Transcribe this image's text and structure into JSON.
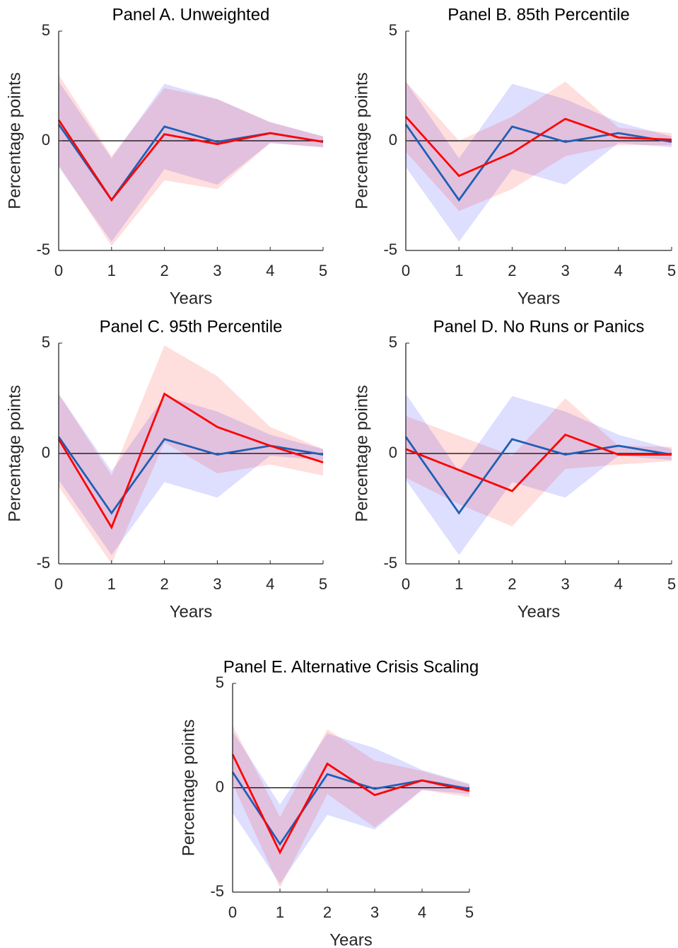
{
  "chart_data": [
    {
      "type": "line",
      "title": "Panel A. Unweighted",
      "xlabel": "Years",
      "ylabel": "Percentage points",
      "x": [
        0,
        1,
        2,
        3,
        4,
        5
      ],
      "xlim": [
        0,
        5
      ],
      "xticks": [
        0,
        1,
        2,
        3,
        4,
        5
      ],
      "ylim": [
        -5,
        5
      ],
      "yticks": [
        -5,
        0,
        5
      ],
      "reference_line": 0,
      "series": [
        {
          "color": "#1f5fb5",
          "band_color": "#0000ff",
          "values": [
            0.75,
            -2.7,
            0.65,
            -0.05,
            0.35,
            -0.05
          ],
          "lower": [
            -1.2,
            -4.6,
            -1.3,
            -2.0,
            -0.1,
            -0.3
          ],
          "upper": [
            2.7,
            -0.8,
            2.6,
            1.9,
            0.85,
            0.2
          ]
        },
        {
          "color": "#ff0000",
          "band_color": "#ff0000",
          "values": [
            0.95,
            -2.7,
            0.3,
            -0.15,
            0.35,
            -0.05
          ],
          "lower": [
            -1.1,
            -4.8,
            -1.8,
            -2.2,
            -0.1,
            -0.3
          ],
          "upper": [
            3.0,
            -0.7,
            2.4,
            1.9,
            0.85,
            0.2
          ]
        }
      ]
    },
    {
      "type": "line",
      "title": "Panel B. 85th Percentile",
      "xlabel": "Years",
      "ylabel": "Percentage points",
      "x": [
        0,
        1,
        2,
        3,
        4,
        5
      ],
      "xlim": [
        0,
        5
      ],
      "xticks": [
        0,
        1,
        2,
        3,
        4,
        5
      ],
      "ylim": [
        -5,
        5
      ],
      "yticks": [
        -5,
        0,
        5
      ],
      "reference_line": 0,
      "series": [
        {
          "color": "#1f5fb5",
          "band_color": "#0000ff",
          "values": [
            0.75,
            -2.7,
            0.65,
            -0.05,
            0.35,
            -0.05
          ],
          "lower": [
            -1.2,
            -4.6,
            -1.3,
            -2.0,
            -0.1,
            -0.3
          ],
          "upper": [
            2.7,
            -0.8,
            2.6,
            1.9,
            0.85,
            0.2
          ]
        },
        {
          "color": "#ff0000",
          "band_color": "#ff0000",
          "values": [
            1.1,
            -1.6,
            -0.55,
            1.0,
            0.15,
            0.05
          ],
          "lower": [
            -0.5,
            -3.2,
            -2.2,
            -0.7,
            -0.2,
            -0.2
          ],
          "upper": [
            2.7,
            0.0,
            1.1,
            2.7,
            0.6,
            0.35
          ]
        }
      ]
    },
    {
      "type": "line",
      "title": "Panel C. 95th Percentile",
      "xlabel": "Years",
      "ylabel": "Percentage points",
      "x": [
        0,
        1,
        2,
        3,
        4,
        5
      ],
      "xlim": [
        0,
        5
      ],
      "xticks": [
        0,
        1,
        2,
        3,
        4,
        5
      ],
      "ylim": [
        -5,
        5
      ],
      "yticks": [
        -5,
        0,
        5
      ],
      "reference_line": 0,
      "series": [
        {
          "color": "#1f5fb5",
          "band_color": "#0000ff",
          "values": [
            0.75,
            -2.7,
            0.65,
            -0.05,
            0.35,
            -0.05
          ],
          "lower": [
            -1.2,
            -4.6,
            -1.3,
            -2.0,
            -0.1,
            -0.3
          ],
          "upper": [
            2.7,
            -0.8,
            2.6,
            1.9,
            0.85,
            0.2
          ]
        },
        {
          "color": "#ff0000",
          "band_color": "#ff0000",
          "values": [
            0.65,
            -3.35,
            2.7,
            1.2,
            0.35,
            -0.4
          ],
          "lower": [
            -1.5,
            -5.0,
            0.5,
            -0.9,
            -0.5,
            -1.0
          ],
          "upper": [
            2.7,
            -1.0,
            4.9,
            3.5,
            1.2,
            0.2
          ]
        }
      ]
    },
    {
      "type": "line",
      "title": "Panel D. No Runs or Panics",
      "xlabel": "Years",
      "ylabel": "Percentage points",
      "x": [
        0,
        1,
        2,
        3,
        4,
        5
      ],
      "xlim": [
        0,
        5
      ],
      "xticks": [
        0,
        1,
        2,
        3,
        4,
        5
      ],
      "ylim": [
        -5,
        5
      ],
      "yticks": [
        -5,
        0,
        5
      ],
      "reference_line": 0,
      "series": [
        {
          "color": "#1f5fb5",
          "band_color": "#0000ff",
          "values": [
            0.75,
            -2.7,
            0.65,
            -0.05,
            0.35,
            -0.05
          ],
          "lower": [
            -1.2,
            -4.6,
            -1.3,
            -2.0,
            -0.1,
            -0.3
          ],
          "upper": [
            2.7,
            -0.8,
            2.6,
            1.9,
            0.85,
            0.2
          ]
        },
        {
          "color": "#ff0000",
          "band_color": "#ff0000",
          "values": [
            0.2,
            -0.75,
            -1.7,
            0.85,
            -0.05,
            -0.05
          ],
          "lower": [
            -1.1,
            -2.3,
            -3.3,
            -0.7,
            -0.5,
            -0.35
          ],
          "upper": [
            1.7,
            0.8,
            -0.1,
            2.5,
            0.35,
            0.3
          ]
        }
      ]
    },
    {
      "type": "line",
      "title": "Panel E. Alternative Crisis Scaling",
      "xlabel": "Years",
      "ylabel": "Percentage points",
      "x": [
        0,
        1,
        2,
        3,
        4,
        5
      ],
      "xlim": [
        0,
        5
      ],
      "xticks": [
        0,
        1,
        2,
        3,
        4,
        5
      ],
      "ylim": [
        -5,
        5
      ],
      "yticks": [
        -5,
        0,
        5
      ],
      "reference_line": 0,
      "series": [
        {
          "color": "#1f5fb5",
          "band_color": "#0000ff",
          "values": [
            0.75,
            -2.7,
            0.65,
            -0.05,
            0.35,
            -0.05
          ],
          "lower": [
            -1.2,
            -4.6,
            -1.3,
            -2.0,
            -0.1,
            -0.3
          ],
          "upper": [
            2.7,
            -0.8,
            2.6,
            1.9,
            0.85,
            0.2
          ]
        },
        {
          "color": "#ff0000",
          "band_color": "#ff0000",
          "values": [
            1.6,
            -3.1,
            1.15,
            -0.35,
            0.35,
            -0.15
          ],
          "lower": [
            0.2,
            -4.8,
            -0.3,
            -1.9,
            -0.1,
            -0.45
          ],
          "upper": [
            3.0,
            -1.4,
            2.8,
            1.3,
            0.8,
            0.15
          ]
        }
      ]
    }
  ]
}
